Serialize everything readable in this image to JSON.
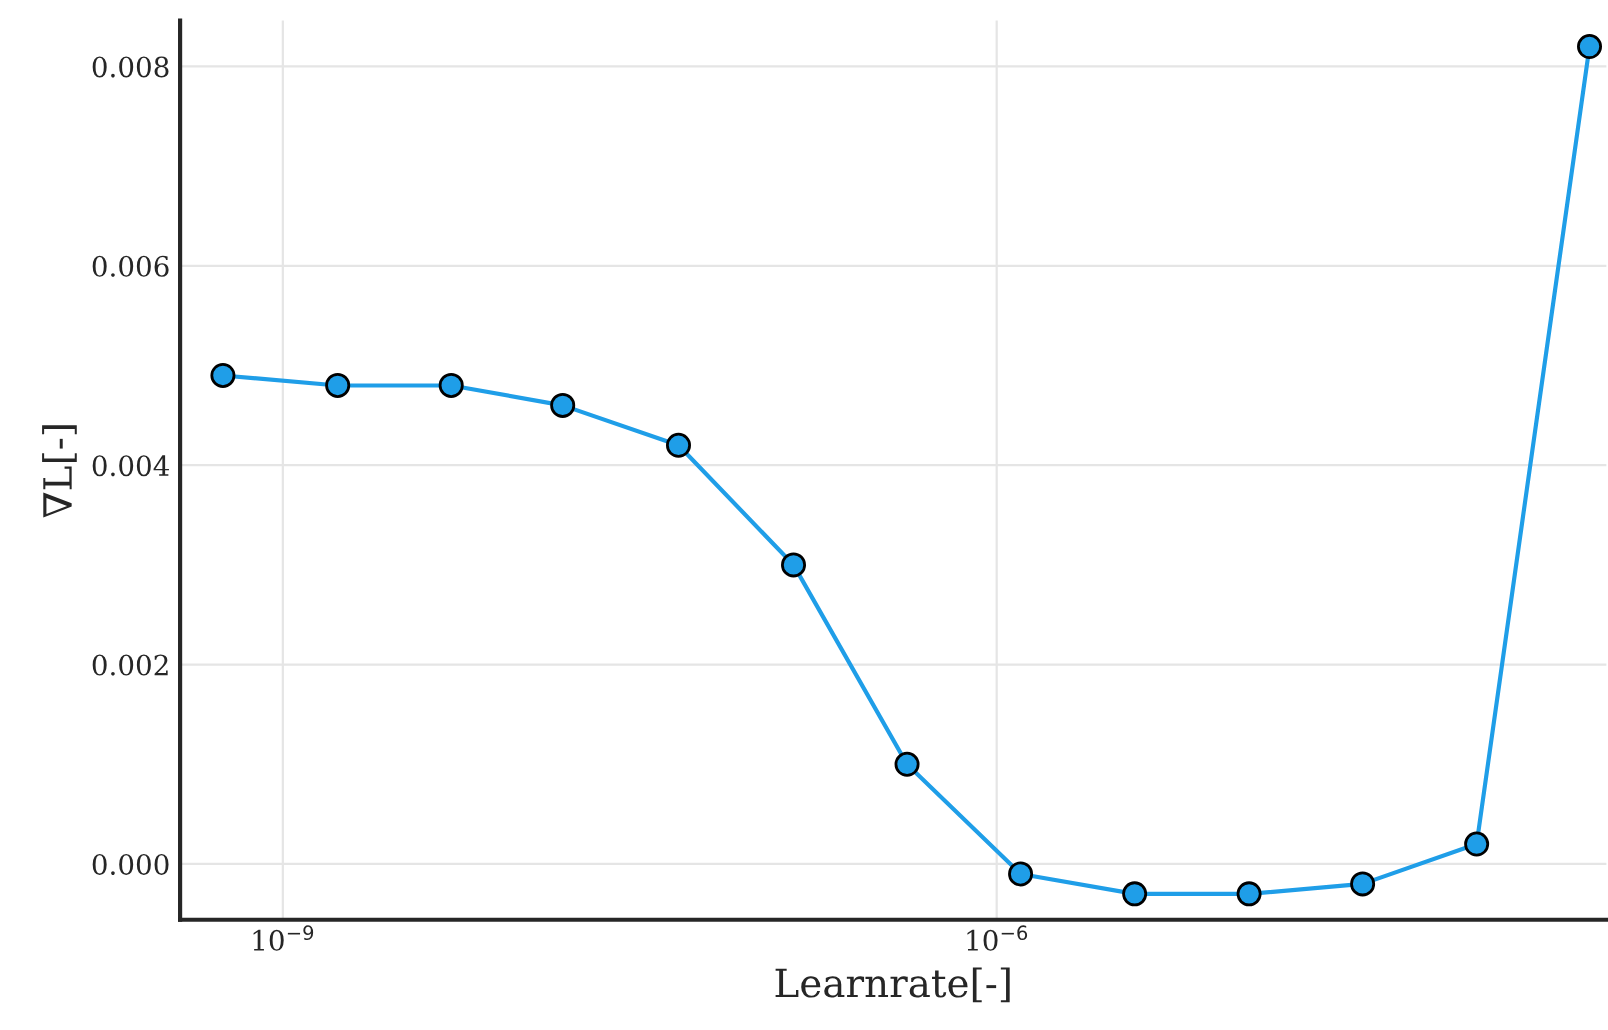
{
  "chart_data": {
    "type": "line",
    "xlabel": "Learnrate[-]",
    "ylabel": "∇L[-]",
    "x": [
      5.6e-10,
      1.7e-09,
      5.1e-09,
      1.5e-08,
      4.6e-08,
      1.4e-07,
      4.2e-07,
      1.26e-06,
      3.8e-06,
      1.15e-05,
      3.45e-05,
      0.000104,
      0.00031
    ],
    "series": [
      {
        "color": "#1f9ee8",
        "values": [
          0.0049,
          0.0048,
          0.0048,
          0.0046,
          0.0042,
          0.003,
          0.001,
          -0.0001,
          -0.0003,
          -0.0003,
          -0.0002,
          0.0002,
          0.0082
        ]
      }
    ],
    "log": "x",
    "xlim": [
      3.7e-10,
      0.000365
    ],
    "xticks": [
      {
        "value": 1e-09,
        "label": "10$^{−9}$"
      },
      {
        "value": 1e-06,
        "label": "10$^{−6}$"
      }
    ],
    "ylim": [
      -0.00056,
      0.00846
    ],
    "yticks": [
      {
        "value": 0,
        "label": "0.000"
      },
      {
        "value": 0.002,
        "label": "0.002"
      },
      {
        "value": 0.004,
        "label": "0.004"
      },
      {
        "value": 0.006,
        "label": "0.006"
      },
      {
        "value": 0.008,
        "label": "0.008"
      }
    ],
    "grid": true,
    "marker": "circle",
    "line_style": "solid"
  }
}
